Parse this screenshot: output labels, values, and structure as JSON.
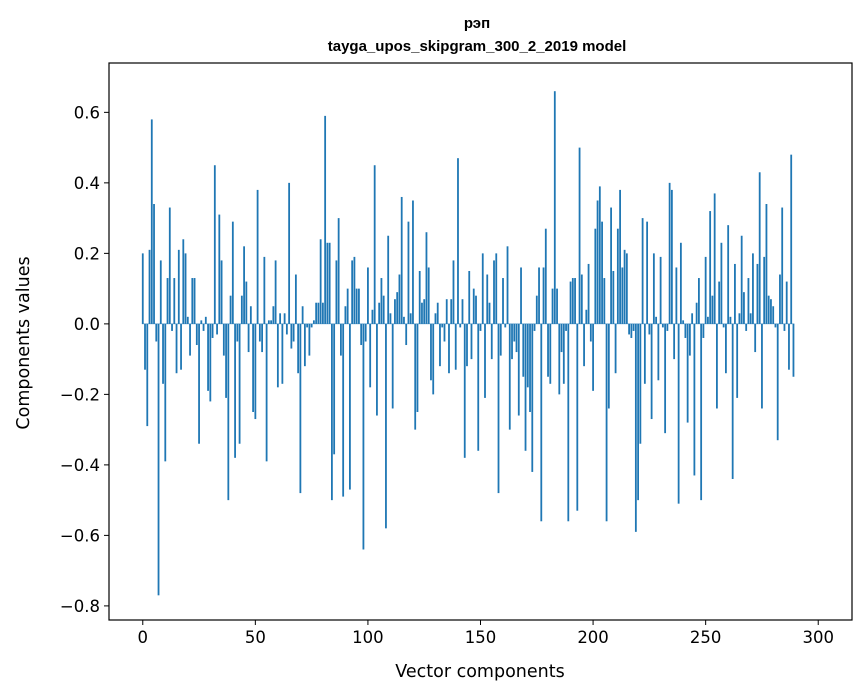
{
  "chart_data": {
    "type": "bar",
    "title": "рэп",
    "subtitle": "tayga_upos_skipgram_300_2_2019 model",
    "xlabel": "Vector components",
    "ylabel": "Components values",
    "xlim": [
      -15,
      315
    ],
    "ylim": [
      -0.84,
      0.74
    ],
    "xticks": [
      0,
      50,
      100,
      150,
      200,
      250,
      300
    ],
    "xtick_labels": [
      "0",
      "50",
      "100",
      "150",
      "200",
      "250",
      "300"
    ],
    "yticks": [
      -0.8,
      -0.6,
      -0.4,
      -0.2,
      0.0,
      0.2,
      0.4,
      0.6
    ],
    "ytick_labels": [
      "−0.8",
      "−0.6",
      "−0.4",
      "−0.2",
      "0.0",
      "0.2",
      "0.4",
      "0.6"
    ],
    "bar_color": "#1f77b4",
    "grid": false,
    "values": [
      0.2,
      -0.13,
      -0.29,
      0.21,
      0.58,
      0.34,
      -0.05,
      -0.77,
      0.18,
      -0.17,
      -0.39,
      0.13,
      0.33,
      -0.02,
      0.13,
      -0.14,
      0.21,
      -0.13,
      0.24,
      0.2,
      0.02,
      -0.09,
      0.13,
      0.13,
      -0.06,
      -0.34,
      0.01,
      -0.02,
      0.02,
      -0.19,
      -0.22,
      -0.04,
      0.45,
      -0.03,
      0.31,
      0.18,
      -0.09,
      -0.21,
      -0.5,
      0.08,
      0.29,
      -0.38,
      -0.05,
      -0.34,
      0.08,
      0.22,
      0.12,
      -0.08,
      0.05,
      -0.25,
      -0.27,
      0.38,
      -0.05,
      -0.08,
      0.19,
      -0.39,
      0.01,
      0.01,
      0.05,
      0.18,
      -0.18,
      0.03,
      -0.17,
      0.03,
      -0.03,
      0.4,
      -0.07,
      -0.05,
      0.14,
      -0.14,
      -0.48,
      0.05,
      -0.12,
      -0.01,
      -0.09,
      -0.01,
      0.01,
      0.06,
      0.06,
      0.24,
      0.06,
      0.59,
      0.23,
      0.23,
      -0.5,
      -0.37,
      0.18,
      0.3,
      -0.09,
      -0.49,
      0.05,
      0.1,
      -0.47,
      0.18,
      0.19,
      0.1,
      0.1,
      -0.06,
      -0.64,
      -0.05,
      0.16,
      -0.18,
      0.04,
      0.45,
      -0.26,
      0.06,
      0.13,
      0.08,
      -0.58,
      0.25,
      0.03,
      -0.24,
      0.07,
      0.09,
      0.14,
      0.36,
      0.02,
      -0.06,
      0.29,
      0.03,
      0.35,
      -0.3,
      -0.25,
      0.15,
      0.06,
      0.07,
      0.26,
      0.16,
      -0.16,
      -0.2,
      0.03,
      0.06,
      -0.12,
      -0.01,
      -0.05,
      0.07,
      -0.14,
      0.07,
      0.18,
      -0.13,
      0.47,
      -0.01,
      0.07,
      -0.38,
      -0.12,
      0.15,
      -0.1,
      0.1,
      0.08,
      -0.36,
      -0.02,
      0.2,
      -0.21,
      0.14,
      0.06,
      -0.1,
      0.18,
      0.2,
      -0.48,
      -0.09,
      0.13,
      -0.01,
      0.22,
      -0.3,
      -0.1,
      -0.05,
      -0.08,
      -0.26,
      0.16,
      -0.15,
      -0.36,
      -0.18,
      -0.25,
      -0.42,
      -0.02,
      0.08,
      0.16,
      -0.56,
      0.16,
      0.27,
      -0.15,
      -0.17,
      0.1,
      0.66,
      0.1,
      -0.2,
      -0.08,
      -0.17,
      -0.02,
      -0.56,
      0.12,
      0.13,
      0.13,
      -0.53,
      0.5,
      0.14,
      -0.12,
      0.04,
      0.17,
      -0.05,
      -0.19,
      0.27,
      0.35,
      0.39,
      0.29,
      0.13,
      -0.56,
      -0.24,
      0.33,
      0.15,
      -0.14,
      0.27,
      0.38,
      0.16,
      0.21,
      0.2,
      -0.03,
      -0.04,
      -0.02,
      -0.59,
      -0.5,
      -0.34,
      0.3,
      -0.17,
      0.29,
      -0.03,
      -0.27,
      0.2,
      0.02,
      -0.16,
      0.19,
      -0.01,
      -0.31,
      -0.02,
      0.4,
      0.38,
      -0.1,
      0.16,
      -0.51,
      0.23,
      0.01,
      -0.04,
      -0.28,
      -0.09,
      0.03,
      -0.43,
      0.06,
      0.13,
      -0.5,
      -0.04,
      0.19,
      0.02,
      0.32,
      0.08,
      0.37,
      -0.24,
      0.12,
      0.23,
      -0.01,
      -0.14,
      0.28,
      0.02,
      -0.44,
      0.17,
      -0.21,
      0.03,
      0.25,
      0.09,
      -0.02,
      0.13,
      0.03,
      0.2,
      -0.08,
      0.17,
      0.43,
      -0.24,
      0.19,
      0.34,
      0.08,
      0.07,
      0.05,
      -0.01,
      -0.33,
      0.14,
      0.33,
      -0.02,
      0.12,
      -0.13,
      0.48,
      -0.15
    ]
  }
}
